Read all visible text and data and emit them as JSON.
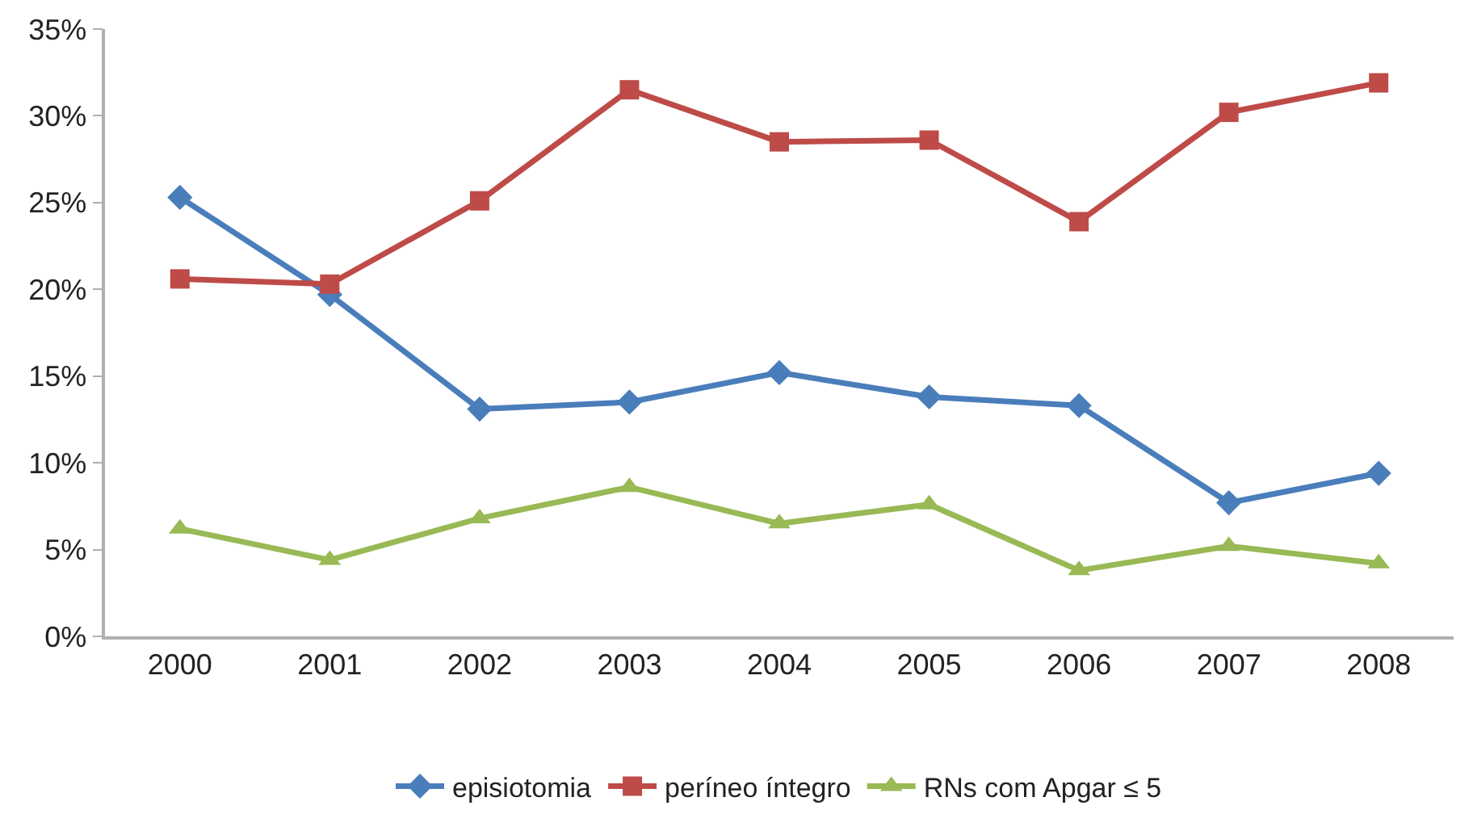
{
  "chart_data": {
    "type": "line",
    "categories": [
      "2000",
      "2001",
      "2002",
      "2003",
      "2004",
      "2005",
      "2006",
      "2007",
      "2008"
    ],
    "series": [
      {
        "name": "episiotomia",
        "color": "#4a7ebb",
        "marker": "diamond",
        "values": [
          25.3,
          19.7,
          13.1,
          13.5,
          15.2,
          13.8,
          13.3,
          7.7,
          9.4
        ]
      },
      {
        "name": "períneo íntegro",
        "color": "#be4b48",
        "marker": "square",
        "values": [
          20.6,
          20.3,
          25.1,
          31.5,
          28.5,
          28.6,
          23.9,
          30.2,
          31.9
        ]
      },
      {
        "name": "RNs com Apgar ≤ 5",
        "color": "#98b954",
        "marker": "triangle",
        "values": [
          6.2,
          4.4,
          6.8,
          8.6,
          6.5,
          7.6,
          3.8,
          5.2,
          4.2
        ]
      }
    ],
    "ylim": [
      0,
      35
    ],
    "yticks": [
      {
        "value": 0,
        "label": "0%"
      },
      {
        "value": 5,
        "label": "5%"
      },
      {
        "value": 10,
        "label": "10%"
      },
      {
        "value": 15,
        "label": "15%"
      },
      {
        "value": 20,
        "label": "20%"
      },
      {
        "value": 25,
        "label": "25%"
      },
      {
        "value": 30,
        "label": "30%"
      },
      {
        "value": 35,
        "label": "35%"
      }
    ],
    "grid": false,
    "legend": "bottom",
    "line_style": "solid"
  }
}
